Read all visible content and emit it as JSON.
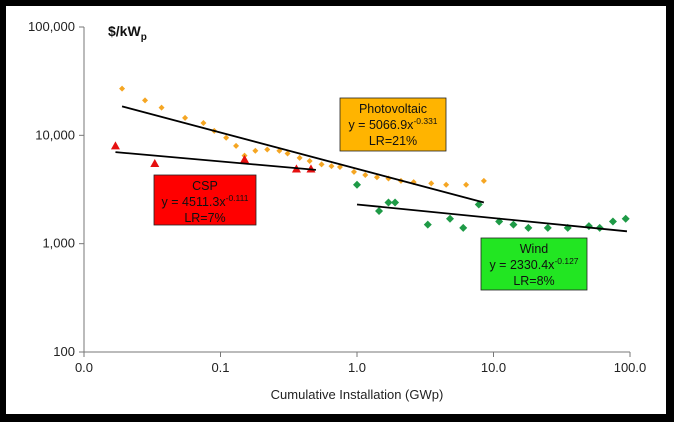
{
  "chart_data": {
    "type": "scatter",
    "title": "",
    "ylabel_unit": "$/kW",
    "ylabel_unit_sub": "p",
    "xlabel": "Cumulative Installation (GWp)",
    "x_scale": "log",
    "y_scale": "log",
    "xlim": [
      0.01,
      100
    ],
    "ylim": [
      100,
      100000
    ],
    "x_ticks": [
      {
        "value": 0.01,
        "label": "0.0"
      },
      {
        "value": 0.1,
        "label": "0.1"
      },
      {
        "value": 1,
        "label": "1.0"
      },
      {
        "value": 10,
        "label": "10.0"
      },
      {
        "value": 100,
        "label": "100.0"
      }
    ],
    "y_ticks": [
      {
        "value": 100,
        "label": "100"
      },
      {
        "value": 1000,
        "label": "1,000"
      },
      {
        "value": 10000,
        "label": "10,000"
      },
      {
        "value": 100000,
        "label": "100,000"
      }
    ],
    "series": [
      {
        "name": "Photovoltaic",
        "color": "#f5a623",
        "marker": "diamond",
        "points": [
          [
            0.019,
            27000
          ],
          [
            0.028,
            21000
          ],
          [
            0.037,
            18000
          ],
          [
            0.055,
            14500
          ],
          [
            0.075,
            13000
          ],
          [
            0.09,
            11000
          ],
          [
            0.11,
            9500
          ],
          [
            0.13,
            8000
          ],
          [
            0.15,
            6500
          ],
          [
            0.18,
            7200
          ],
          [
            0.22,
            7400
          ],
          [
            0.27,
            7200
          ],
          [
            0.31,
            6800
          ],
          [
            0.38,
            6200
          ],
          [
            0.45,
            5800
          ],
          [
            0.55,
            5400
          ],
          [
            0.65,
            5200
          ],
          [
            0.75,
            5100
          ],
          [
            0.95,
            4600
          ],
          [
            1.15,
            4300
          ],
          [
            1.4,
            4100
          ],
          [
            1.7,
            4000
          ],
          [
            2.1,
            3800
          ],
          [
            2.6,
            3700
          ],
          [
            3.5,
            3600
          ],
          [
            4.5,
            3500
          ],
          [
            6.3,
            3500
          ],
          [
            8.5,
            3800
          ]
        ],
        "fit": {
          "x": [
            0.019,
            8.5
          ],
          "y": [
            18500,
            2400
          ]
        },
        "label": {
          "title": "Photovoltaic",
          "equation_base": "y = 5066.9x",
          "exponent": "-0.331",
          "lr": "LR=21%"
        }
      },
      {
        "name": "CSP",
        "color": "#e61010",
        "marker": "triangle",
        "points": [
          [
            0.017,
            8000
          ],
          [
            0.033,
            5500
          ],
          [
            0.15,
            6000
          ],
          [
            0.36,
            4900
          ],
          [
            0.46,
            4900
          ]
        ],
        "fit": {
          "x": [
            0.017,
            0.5
          ],
          "y": [
            7000,
            4800
          ]
        },
        "label": {
          "title": "CSP",
          "equation_base": "y = 4511.3x",
          "exponent": "-0.111",
          "lr": "LR=7%"
        }
      },
      {
        "name": "Wind",
        "color": "#1e9a46",
        "marker": "diamond",
        "points": [
          [
            1.0,
            3500
          ],
          [
            1.45,
            2000
          ],
          [
            1.7,
            2400
          ],
          [
            1.9,
            2400
          ],
          [
            3.3,
            1500
          ],
          [
            4.8,
            1700
          ],
          [
            6.0,
            1400
          ],
          [
            7.8,
            2300
          ],
          [
            11,
            1600
          ],
          [
            14,
            1500
          ],
          [
            18,
            1400
          ],
          [
            25,
            1400
          ],
          [
            35,
            1400
          ],
          [
            50,
            1450
          ],
          [
            60,
            1400
          ],
          [
            75,
            1600
          ],
          [
            93,
            1700
          ]
        ],
        "fit": {
          "x": [
            1.0,
            95
          ],
          "y": [
            2300,
            1300
          ]
        },
        "label": {
          "title": "Wind",
          "equation_base": "y = 2330.4x",
          "exponent": "-0.127",
          "lr": "LR=8%"
        }
      }
    ]
  },
  "label_boxes": {
    "photovoltaic": {
      "fill": "#ffb400"
    },
    "csp": {
      "fill": "#ff0000"
    },
    "wind": {
      "fill": "#22e622"
    }
  }
}
